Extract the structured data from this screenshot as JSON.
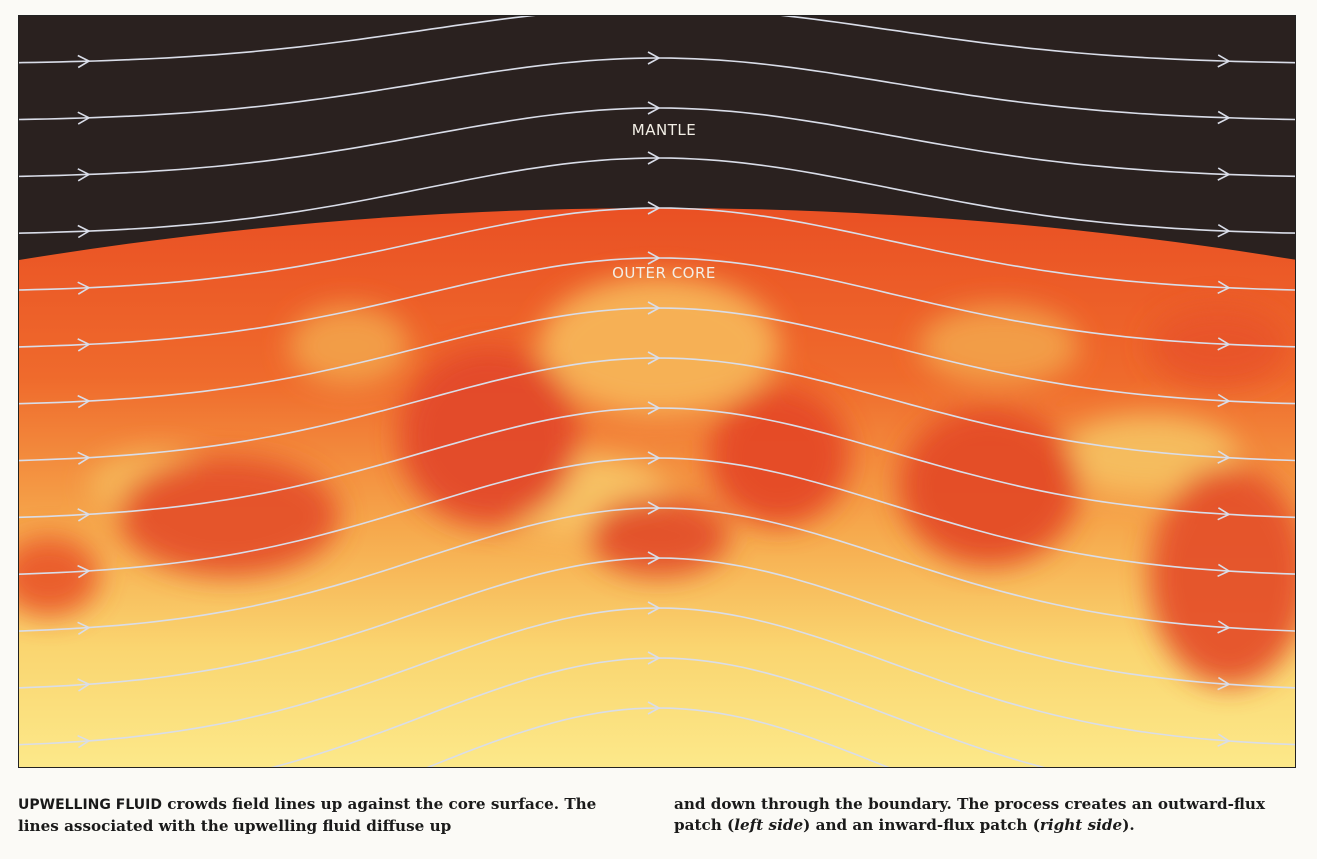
{
  "diagram": {
    "labels": {
      "mantle": "MANTLE",
      "outer_core": "OUTER CORE"
    },
    "colors": {
      "mantle": "#2a211f",
      "core_deep": "#e04c24",
      "core_mid": "#f28a3c",
      "core_light": "#fbe47e",
      "field_line": "#d9dde8"
    },
    "field_line_count": 15,
    "arrow_direction": "left-to-right"
  },
  "caption": {
    "lead_in": "UPWELLING FLUID",
    "col1_text": " crowds field lines up against the core surface. The lines associated with the upwelling fluid diffuse up",
    "col2_text_a": "and down through the boundary. The process creates an outward-flux patch (",
    "col2_left_side": "left side",
    "col2_text_b": ") and an inward-flux patch (",
    "col2_right_side": "right side",
    "col2_text_c": ")."
  }
}
